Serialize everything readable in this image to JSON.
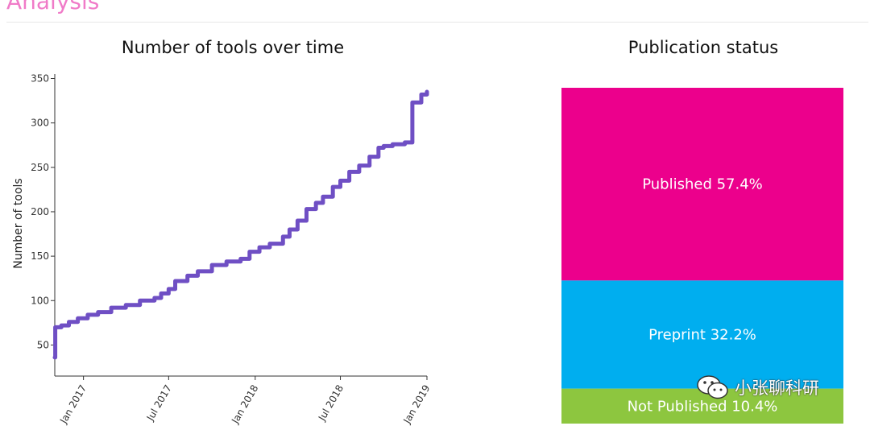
{
  "section": {
    "title": "Analysis"
  },
  "watermark": {
    "text": "小张聊科研",
    "icon": "wechat-icon"
  },
  "chart_data": [
    {
      "type": "line",
      "title": "Number of tools over time",
      "xlabel": "",
      "ylabel": "Number of tools",
      "x_ticks": [
        "Jan 2017",
        "Jul 2017",
        "Jan 2018",
        "Jul 2018",
        "Jan 2019"
      ],
      "xlim": [
        "2016-11-01",
        "2019-01-01"
      ],
      "ylim": [
        15,
        355
      ],
      "y_ticks": [
        50,
        100,
        150,
        200,
        250,
        300,
        350
      ],
      "grid": false,
      "color": "#6f4fc4",
      "series": [
        {
          "x": [
            "2016-11-01",
            "2016-11-02",
            "2016-11-15",
            "2016-12-01",
            "2016-12-20",
            "2017-01-10",
            "2017-02-01",
            "2017-03-01",
            "2017-04-01",
            "2017-05-01",
            "2017-06-01",
            "2017-06-15",
            "2017-07-01",
            "2017-07-15",
            "2017-08-10",
            "2017-09-01",
            "2017-10-01",
            "2017-11-01",
            "2017-12-01",
            "2017-12-20",
            "2018-01-10",
            "2018-02-01",
            "2018-03-01",
            "2018-03-15",
            "2018-04-01",
            "2018-04-20",
            "2018-05-10",
            "2018-05-25",
            "2018-06-15",
            "2018-07-01",
            "2018-07-20",
            "2018-08-10",
            "2018-09-01",
            "2018-09-20",
            "2018-10-01",
            "2018-10-20",
            "2018-11-15",
            "2018-12-01",
            "2018-12-20",
            "2019-01-01"
          ],
          "y": [
            36,
            70,
            72,
            76,
            80,
            84,
            87,
            92,
            95,
            100,
            103,
            108,
            113,
            122,
            128,
            133,
            140,
            144,
            147,
            155,
            160,
            164,
            172,
            180,
            190,
            203,
            210,
            217,
            228,
            235,
            245,
            252,
            262,
            272,
            274,
            276,
            278,
            323,
            332,
            335
          ]
        }
      ]
    },
    {
      "type": "bar",
      "stacked": true,
      "title": "Publication status",
      "segments": [
        {
          "label": "Published 57.4%",
          "value": 57.4,
          "color": "#ec008c"
        },
        {
          "label": "Preprint 32.2%",
          "value": 32.2,
          "color": "#00aeef"
        },
        {
          "label": "Not Published 10.4%",
          "value": 10.4,
          "color": "#8dc63f"
        }
      ]
    }
  ]
}
